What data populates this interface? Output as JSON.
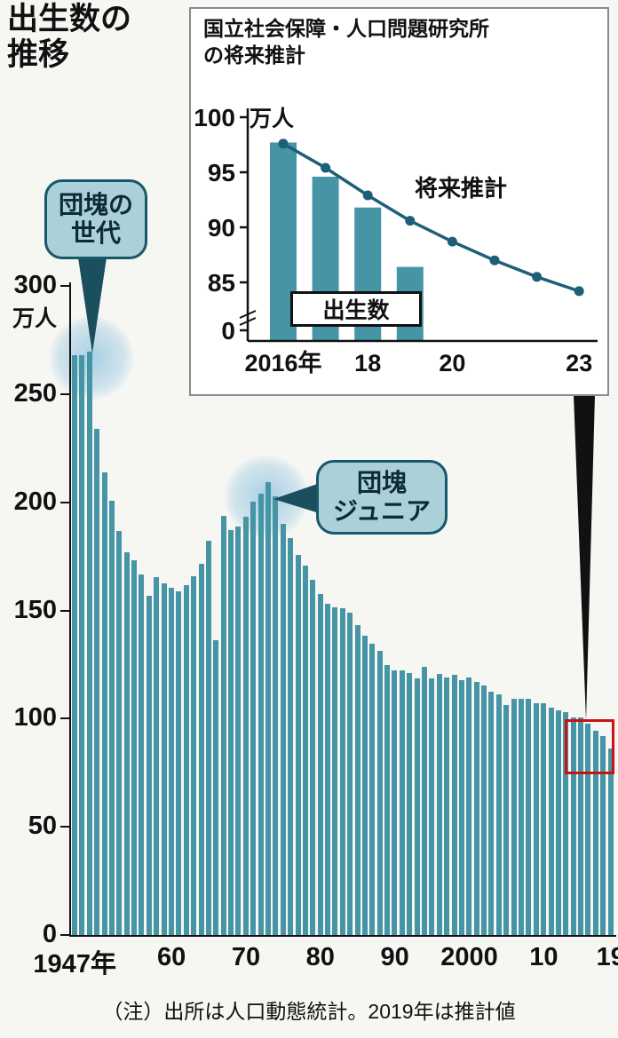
{
  "page": {
    "title": "出生数の推移",
    "title_line1": "出生数の",
    "title_line2": "推移",
    "note": "（注）出所は人口動態統計。2019年は推計値"
  },
  "colors": {
    "bar": "#4695a6",
    "line": "#1d5f78",
    "bubble_fill": "#abd0da",
    "bubble_border": "#15596b",
    "highlight_box": "#cc1111",
    "axis": "#111111"
  },
  "main_chart": {
    "unit_label": "万人",
    "annotations": [
      {
        "line1": "団塊の",
        "line2": "世代"
      },
      {
        "line1": "団塊",
        "line2": "ジュニア"
      }
    ]
  },
  "inset": {
    "title_line1": "国立社会保障・人口問題研究所",
    "title_line2": "の将来推計",
    "unit_label": "万人",
    "bar_label": "出生数",
    "line_label": "将来推計"
  },
  "chart_data": [
    {
      "type": "bar",
      "title": "出生数の推移",
      "ylabel": "万人",
      "ylim": [
        0,
        300
      ],
      "x_range": [
        1947,
        2019
      ],
      "values": [
        267.9,
        268.2,
        269.7,
        233.8,
        213.8,
        200.5,
        186.8,
        176.9,
        173.1,
        166.5,
        156.7,
        165.3,
        162.6,
        160.6,
        158.9,
        161.9,
        165.9,
        171.7,
        182.4,
        136.1,
        193.6,
        187.2,
        188.9,
        193.4,
        200.1,
        203.9,
        209.2,
        202.9,
        190.1,
        183.3,
        175.5,
        170.9,
        164.3,
        157.7,
        152.9,
        151.5,
        150.9,
        148.9,
        143.2,
        138.3,
        134.7,
        131.4,
        124.7,
        122.2,
        122.3,
        120.9,
        118.8,
        123.8,
        118.7,
        120.7,
        119.2,
        120.3,
        117.8,
        119.1,
        117.1,
        115.4,
        112.4,
        111.1,
        106.3,
        109.3,
        109.0,
        109.1,
        107.0,
        107.1,
        105.1,
        103.7,
        103.0,
        100.4,
        100.6,
        97.7,
        94.6,
        91.8,
        86.4
      ],
      "yticks": [
        300,
        250,
        200,
        150,
        100,
        50,
        0
      ],
      "xtick_years": [
        1947,
        1960,
        1970,
        1980,
        1990,
        2000,
        2010,
        2019
      ],
      "xtick_labels": [
        "1947年",
        "60",
        "70",
        "80",
        "90",
        "2000",
        "10",
        "19"
      ],
      "annotations": [
        "団塊の世代",
        "団塊ジュニア"
      ],
      "highlight": "2019年（推計値）付近を赤枠で強調"
    },
    {
      "type": "bar+line",
      "title": "国立社会保障・人口問題研究所の将来推計",
      "ylabel": "万人",
      "ylim_shown": [
        85,
        100
      ],
      "axis_break": true,
      "bar_series": {
        "name": "出生数",
        "x": [
          2016,
          2017,
          2018,
          2019
        ],
        "values": [
          97.7,
          94.6,
          91.8,
          86.4
        ]
      },
      "line_series": {
        "name": "将来推計",
        "x": [
          2016,
          2017,
          2018,
          2019,
          2020,
          2021,
          2022,
          2023
        ],
        "values": [
          97.6,
          95.4,
          92.9,
          90.6,
          88.7,
          87.0,
          85.5,
          84.2
        ]
      },
      "yticks": [
        100,
        95,
        90,
        85,
        0
      ],
      "xtick_years": [
        2016,
        2018,
        2020,
        2023
      ],
      "xtick_labels": [
        "2016年",
        "18",
        "20",
        "23"
      ]
    }
  ]
}
